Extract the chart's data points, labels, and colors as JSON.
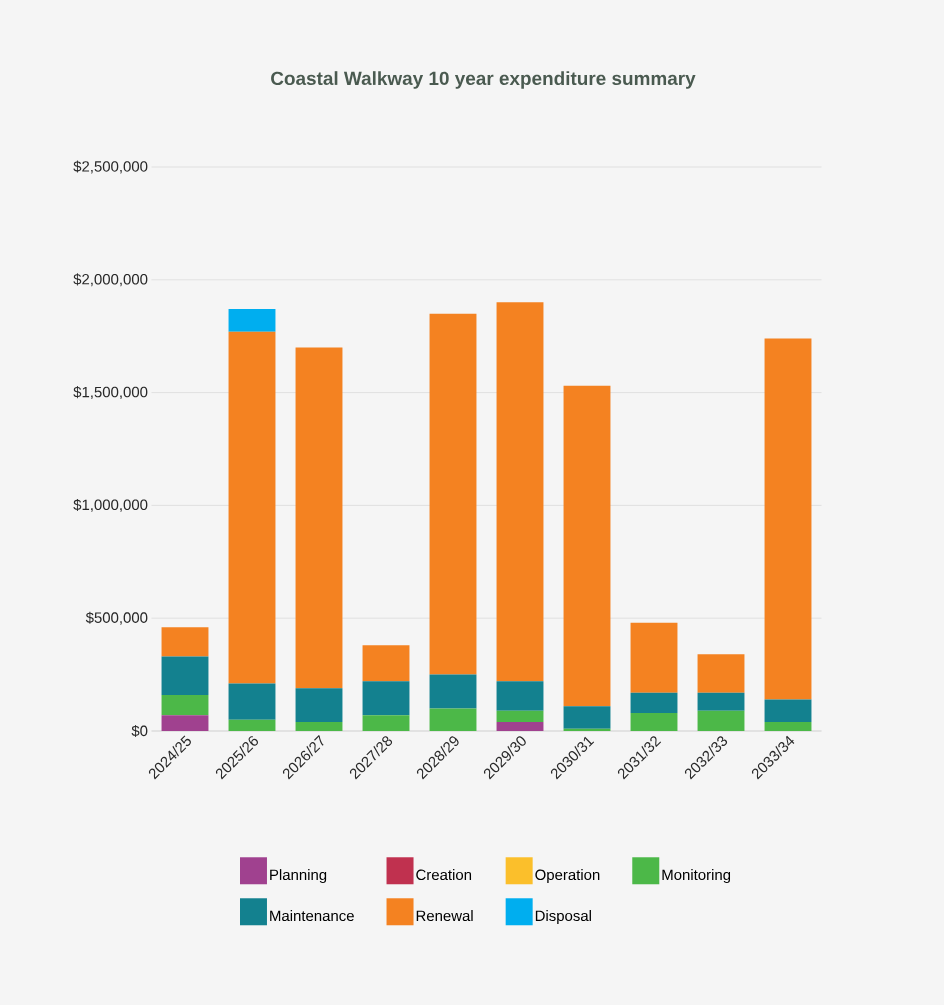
{
  "chart_data": {
    "type": "bar",
    "title": "Coastal Walkway 10 year expenditure summary",
    "stacked": true,
    "grid": "y",
    "legend": "bottom",
    "categories": [
      "2024/25",
      "2025/26",
      "2026/27",
      "2027/28",
      "2028/29",
      "2029/30",
      "2030/31",
      "2031/32",
      "2032/33",
      "2033/34"
    ],
    "ylim": [
      0,
      2500000
    ],
    "yticks": [
      {
        "value": 0,
        "label": "$0"
      },
      {
        "value": 500000,
        "label": "$500,000"
      },
      {
        "value": 1000000,
        "label": "$1,000,000"
      },
      {
        "value": 1500000,
        "label": "$1,500,000"
      },
      {
        "value": 2000000,
        "label": "$2,000,000"
      },
      {
        "value": 2500000,
        "label": "$2,500,000"
      }
    ],
    "series": [
      {
        "name": "Planning",
        "color": "#a0418f",
        "values": [
          70000,
          0,
          0,
          0,
          0,
          40000,
          0,
          0,
          0,
          0
        ]
      },
      {
        "name": "Creation",
        "color": "#c0314f",
        "values": [
          0,
          0,
          0,
          0,
          0,
          0,
          0,
          0,
          0,
          0
        ]
      },
      {
        "name": "Operation",
        "color": "#fbbf2b",
        "values": [
          0,
          0,
          0,
          0,
          0,
          0,
          0,
          0,
          0,
          0
        ]
      },
      {
        "name": "Monitoring",
        "color": "#4cb848",
        "values": [
          90000,
          50000,
          40000,
          70000,
          100000,
          50000,
          10000,
          80000,
          90000,
          40000
        ]
      },
      {
        "name": "Maintenance",
        "color": "#13818f",
        "values": [
          170000,
          160000,
          150000,
          150000,
          150000,
          130000,
          100000,
          90000,
          80000,
          100000
        ]
      },
      {
        "name": "Renewal",
        "color": "#f48221",
        "values": [
          130000,
          1560000,
          1510000,
          160000,
          1600000,
          1680000,
          1420000,
          310000,
          170000,
          1600000
        ]
      },
      {
        "name": "Disposal",
        "color": "#00aeef",
        "values": [
          0,
          100000,
          0,
          0,
          0,
          0,
          0,
          0,
          0,
          0
        ]
      }
    ]
  }
}
